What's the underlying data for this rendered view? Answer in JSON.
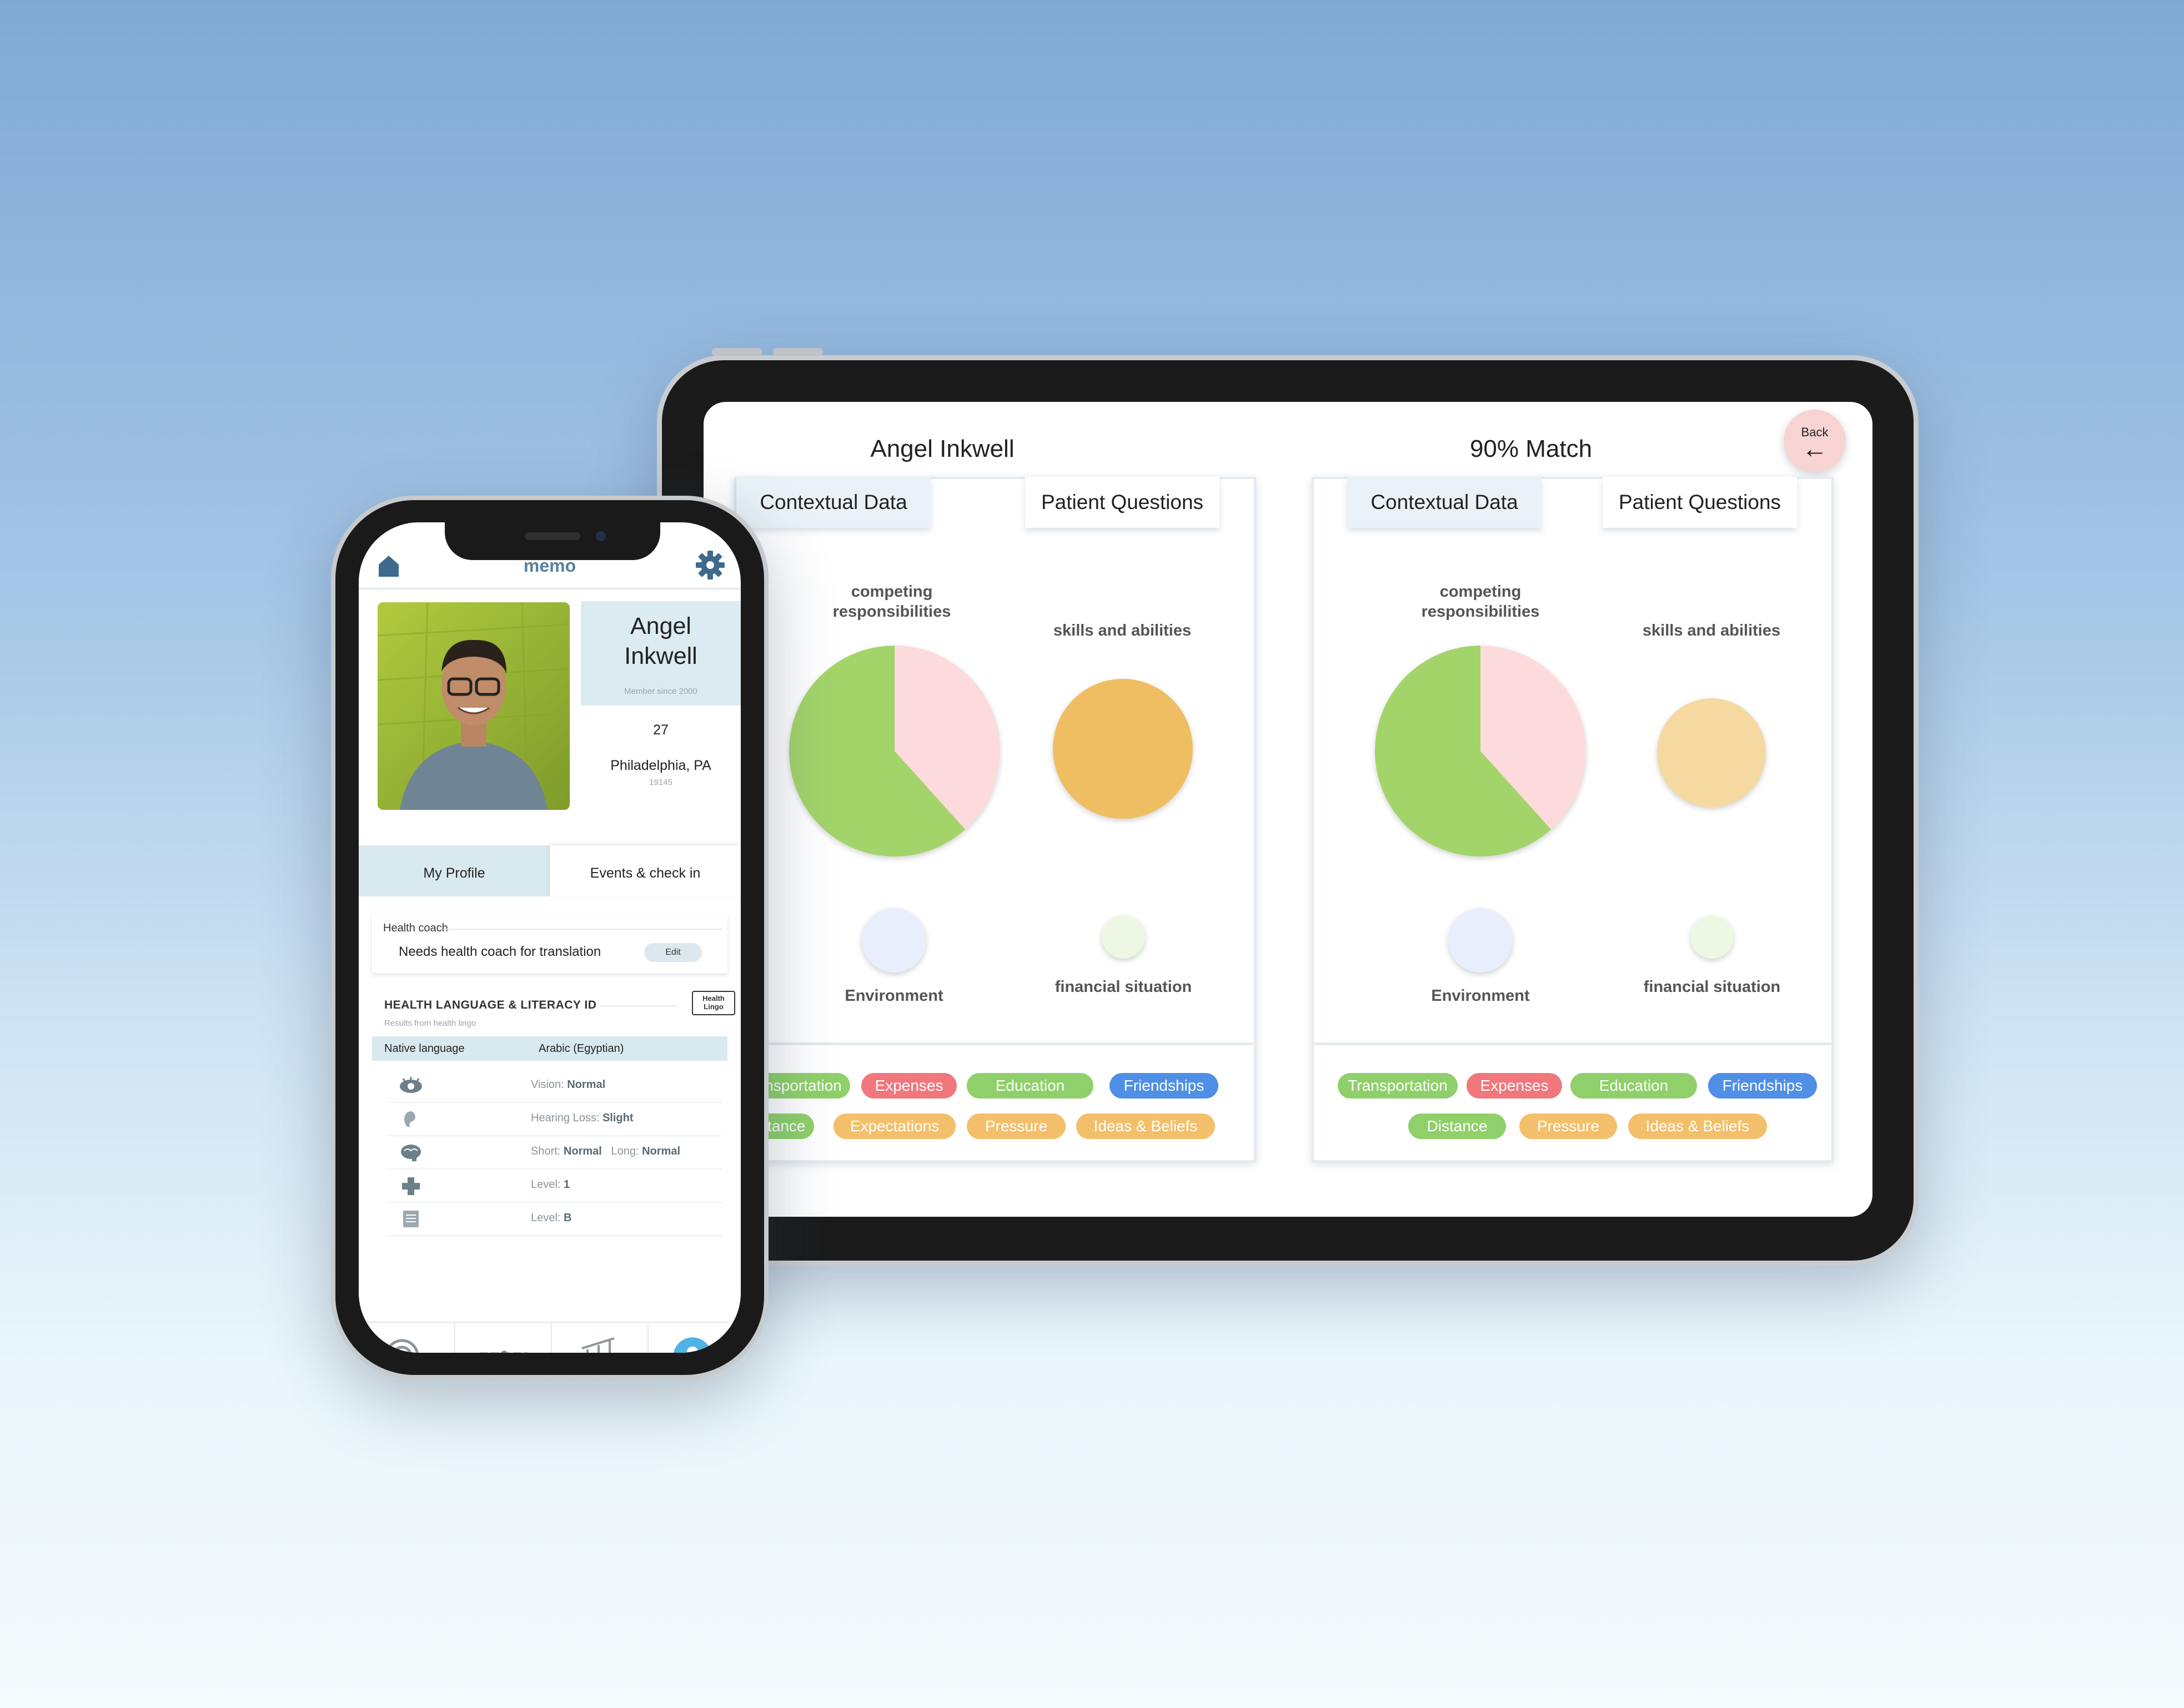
{
  "tablet": {
    "back_label": "Back",
    "back_icon": "arrow-left-icon",
    "panels": [
      {
        "heading": "Angel Inkwell",
        "tab_active": "Contextual Data",
        "tab_other": "Patient Questions",
        "charts": {
          "competing": "competing responsibilities",
          "skills": "skills and abilities",
          "environment": "Environment",
          "financial": "financial situation"
        },
        "tags_row1": [
          "Transportation",
          "Expenses",
          "Education",
          "Friendships"
        ],
        "tags_row2": [
          "Distance",
          "Expectations",
          "Pressure",
          "Ideas & Beliefs"
        ]
      },
      {
        "heading": "90% Match",
        "tab_active": "Contextual Data",
        "tab_other": "Patient Questions",
        "charts": {
          "competing": "competing responsibilities",
          "skills": "skills and abilities",
          "environment": "Environment",
          "financial": "financial situation"
        },
        "tags_row1": [
          "Transportation",
          "Expenses",
          "Education",
          "Friendships"
        ],
        "tags_row2": [
          "Distance",
          "Pressure",
          "Ideas & Beliefs"
        ]
      }
    ],
    "colors": {
      "green": "#a3d46a",
      "pink": "#fddadb",
      "orange": "#f0be62",
      "light_orange": "#f5d9a0",
      "lavender": "#e8eefc",
      "mint": "#eef7e4"
    }
  },
  "phone": {
    "brand": "memo",
    "home_icon": "home-icon",
    "settings_icon": "gear-icon",
    "profile": {
      "first_name": "Angel",
      "last_name": "Inkwell",
      "member_since": "Member since 2000",
      "age": "27",
      "city": "Philadelphia, PA",
      "zip": "19145"
    },
    "tabs": {
      "active": "My Profile",
      "other": "Events & check in"
    },
    "health_coach": {
      "title": "Health coach",
      "text": "Needs health coach for translation",
      "edit": "Edit"
    },
    "literacy": {
      "title": "HEALTH LANGUAGE & LITERACY ID",
      "subtitle": "Results from health lingo",
      "badge_line1": "Health",
      "badge_line2": "Lingo",
      "native_label": "Native language",
      "native_value": "Arabic (Egyptian)",
      "rows": [
        {
          "icon": "eye-icon",
          "label": "Vision: ",
          "value": "Normal"
        },
        {
          "icon": "ear-icon",
          "label": "Hearing Loss: ",
          "value": "Slight"
        },
        {
          "icon": "brain-icon",
          "label": "Short: ",
          "value": "Normal",
          "label2": "Long: ",
          "value2": "Normal"
        },
        {
          "icon": "plus-icon",
          "label": "Level: ",
          "value": "1"
        },
        {
          "icon": "document-icon",
          "label": "Level: ",
          "value": "B"
        }
      ]
    },
    "nav": [
      "target-icon",
      "timeline-icon",
      "chart-icon",
      "profile-icon"
    ]
  }
}
